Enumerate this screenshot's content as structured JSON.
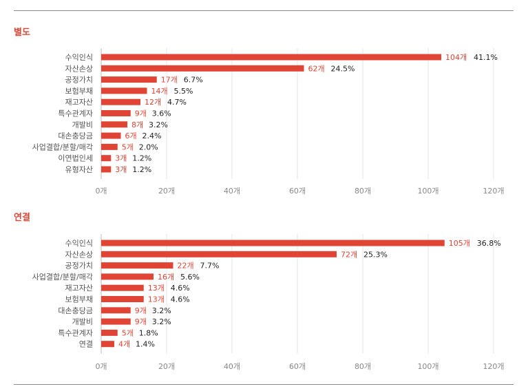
{
  "chart_data": [
    {
      "type": "bar",
      "title": "별도",
      "categories": [
        "수익인식",
        "자산손상",
        "공정가치",
        "보험부채",
        "재고자산",
        "특수관계자",
        "개발비",
        "대손충당금",
        "사업결합/분할/매각",
        "이연법인세",
        "유형자산"
      ],
      "values": [
        104,
        62,
        17,
        14,
        12,
        9,
        8,
        6,
        5,
        3,
        3
      ],
      "count_labels": [
        "104개",
        "62개",
        "17개",
        "14개",
        "12개",
        "9개",
        "8개",
        "6개",
        "5개",
        "3개",
        "3개"
      ],
      "percent_labels": [
        "41.1%",
        "24.5%",
        "6.7%",
        "5.5%",
        "4.7%",
        "3.6%",
        "3.2%",
        "2.4%",
        "2.0%",
        "1.2%",
        "1.2%"
      ],
      "xlim": [
        0,
        120
      ],
      "ticks": [
        0,
        20,
        40,
        60,
        80,
        100,
        120
      ],
      "tick_labels": [
        "0개",
        "20개",
        "40개",
        "60개",
        "80개",
        "100개",
        "120개"
      ],
      "orientation": "horizontal",
      "grid": true,
      "bar_color": "#e04434"
    },
    {
      "type": "bar",
      "title": "연결",
      "categories": [
        "수익인식",
        "자산손상",
        "공정가치",
        "사업결합/분할/매각",
        "재고자산",
        "보험부채",
        "대손충당금",
        "개발비",
        "특수관계자",
        "연결"
      ],
      "values": [
        105,
        72,
        22,
        16,
        13,
        13,
        9,
        9,
        5,
        4
      ],
      "count_labels": [
        "105개",
        "72개",
        "22개",
        "16개",
        "13개",
        "13개",
        "9개",
        "9개",
        "5개",
        "4개"
      ],
      "percent_labels": [
        "36.8%",
        "25.3%",
        "7.7%",
        "5.6%",
        "4.6%",
        "4.6%",
        "3.2%",
        "3.2%",
        "1.8%",
        "1.4%"
      ],
      "xlim": [
        0,
        120
      ],
      "ticks": [
        0,
        20,
        40,
        60,
        80,
        100,
        120
      ],
      "tick_labels": [
        "0개",
        "20개",
        "40개",
        "60개",
        "80개",
        "100개",
        "120개"
      ],
      "orientation": "horizontal",
      "grid": true,
      "bar_color": "#e04434"
    }
  ]
}
